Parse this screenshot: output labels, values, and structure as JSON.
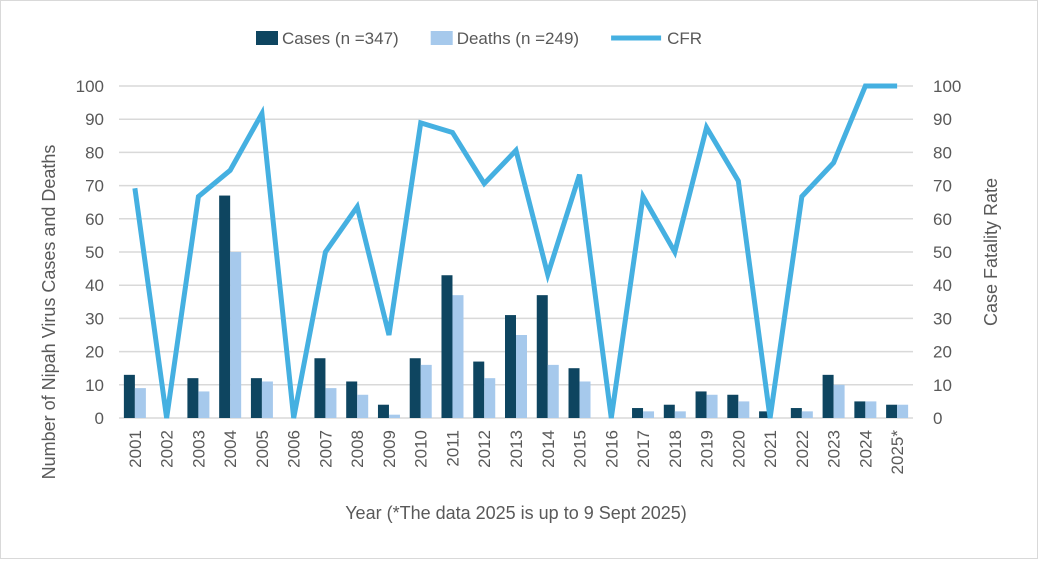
{
  "chart_data": {
    "type": "bar+line",
    "categories": [
      "2001",
      "2002",
      "2003",
      "2004",
      "2005",
      "2006",
      "2007",
      "2008",
      "2009",
      "2010",
      "2011",
      "2012",
      "2013",
      "2014",
      "2015",
      "2016",
      "2017",
      "2018",
      "2019",
      "2020",
      "2021",
      "2022",
      "2023",
      "2024",
      "2025*"
    ],
    "series": [
      {
        "name": "Cases (n =347)",
        "type": "bar",
        "axis": "left",
        "color": "#0e4560",
        "values": [
          13,
          0,
          12,
          67,
          12,
          0,
          18,
          11,
          4,
          18,
          43,
          17,
          31,
          37,
          15,
          0,
          3,
          4,
          8,
          7,
          2,
          3,
          13,
          5,
          4
        ]
      },
      {
        "name": "Deaths (n =249)",
        "type": "bar",
        "axis": "left",
        "color": "#a6c9ec",
        "values": [
          9,
          0,
          8,
          50,
          11,
          0,
          9,
          7,
          1,
          16,
          37,
          12,
          25,
          16,
          11,
          0,
          2,
          2,
          7,
          5,
          0,
          2,
          10,
          5,
          4
        ]
      },
      {
        "name": "CFR",
        "type": "line",
        "axis": "right",
        "color": "#45b0e1",
        "values": [
          69.2,
          0,
          66.7,
          74.6,
          91.7,
          0,
          50,
          63.6,
          25,
          88.9,
          86,
          70.6,
          80.6,
          43.2,
          73.3,
          0,
          66.7,
          50,
          87.5,
          71.4,
          0,
          66.7,
          76.9,
          100,
          100
        ]
      }
    ],
    "xlabel": "Year (*The data 2025 is up to 9 Sept 2025)",
    "ylabel": "Number of Nipah Virus Cases and Deaths",
    "y2label": "Case Fatality Rate",
    "ylim": [
      0,
      100
    ],
    "y2lim": [
      0,
      100
    ],
    "yticks": [
      0,
      10,
      20,
      30,
      40,
      50,
      60,
      70,
      80,
      90,
      100
    ],
    "grid": true,
    "legend": "top"
  }
}
